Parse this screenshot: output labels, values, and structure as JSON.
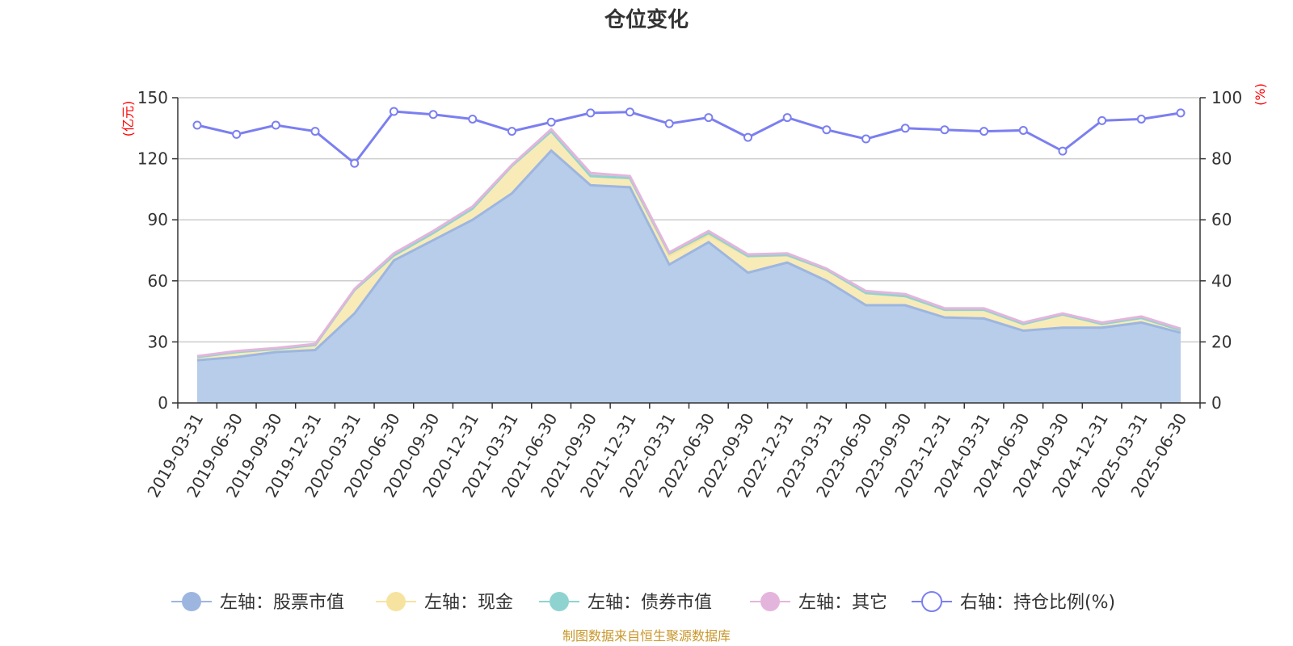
{
  "chart_data": {
    "type": "area",
    "title": "仓位变化",
    "left_axis_unit": "(亿元)",
    "right_axis_unit": "(%)",
    "left_ylim": [
      0,
      150
    ],
    "left_ticks": [
      0,
      30,
      60,
      90,
      120,
      150
    ],
    "right_ylim": [
      0,
      100
    ],
    "right_ticks": [
      0,
      20,
      40,
      60,
      80,
      100
    ],
    "grid": true,
    "legend_position": "bottom",
    "categories": [
      "2019-03-31",
      "2019-06-30",
      "2019-09-30",
      "2019-12-31",
      "2020-03-31",
      "2020-06-30",
      "2020-09-30",
      "2020-12-31",
      "2021-03-31",
      "2021-06-30",
      "2021-09-30",
      "2021-12-31",
      "2022-03-31",
      "2022-06-30",
      "2022-09-30",
      "2022-12-31",
      "2023-03-31",
      "2023-06-30",
      "2023-09-30",
      "2023-12-31",
      "2024-03-31",
      "2024-06-30",
      "2024-09-30",
      "2024-12-31",
      "2025-03-31",
      "2025-06-30"
    ],
    "series": [
      {
        "name": "左轴：股票市值",
        "axis": "left",
        "kind": "area",
        "color": "#9db6e0",
        "fill": "#b8cdea",
        "values": [
          21,
          22.5,
          25,
          26,
          44,
          70,
          80,
          90,
          103,
          124,
          107,
          106,
          68,
          79,
          64,
          69,
          60,
          48,
          48,
          42,
          41.5,
          35.5,
          37,
          37,
          39.5,
          34.5
        ]
      },
      {
        "name": "左轴：现金",
        "axis": "left",
        "kind": "area",
        "color": "#f7e3a0",
        "fill": "#f8ebb8",
        "values": [
          1.5,
          2.5,
          1.5,
          2.5,
          11.5,
          2.5,
          3.5,
          5.5,
          13.5,
          9.5,
          4.5,
          4.5,
          4.5,
          3.5,
          8.0,
          3.5,
          5.5,
          6.0,
          4.5,
          3.8,
          4.3,
          3.3,
          6.5,
          1.8,
          2.3,
          1.3
        ]
      },
      {
        "name": "左轴：债券市值",
        "axis": "left",
        "kind": "area",
        "color": "#8fd3d0",
        "fill": "#a9ded9",
        "values": [
          0,
          0,
          0,
          0,
          0,
          0,
          0,
          0,
          0,
          0,
          0,
          0,
          1.0,
          1.0,
          0.2,
          0.2,
          0,
          0,
          0,
          0,
          0,
          0,
          0,
          0,
          0,
          0
        ]
      },
      {
        "name": "左轴：其它",
        "axis": "left",
        "kind": "area",
        "color": "#e4b5dc",
        "fill": "#ecc6e5",
        "values": [
          0.5,
          0.5,
          0.5,
          0.5,
          0.5,
          1.0,
          1.0,
          1.0,
          0.5,
          1.0,
          1.5,
          1.0,
          0.5,
          1.0,
          0.8,
          0.8,
          0.5,
          1.0,
          1.0,
          0.7,
          0.7,
          0.7,
          0.5,
          0.7,
          0.7,
          0.7
        ]
      },
      {
        "name": "右轴：持仓比例(%)",
        "axis": "right",
        "kind": "line",
        "color": "#7b7ff0",
        "values": [
          91,
          88,
          91,
          89,
          78.5,
          95.5,
          94.5,
          93,
          89,
          92,
          95,
          95.3,
          91.5,
          93.5,
          87,
          93.5,
          89.5,
          86.5,
          90,
          89.5,
          89,
          89.3,
          82.5,
          92.5,
          93,
          95
        ]
      }
    ],
    "source": "制图数据来自恒生聚源数据库"
  }
}
